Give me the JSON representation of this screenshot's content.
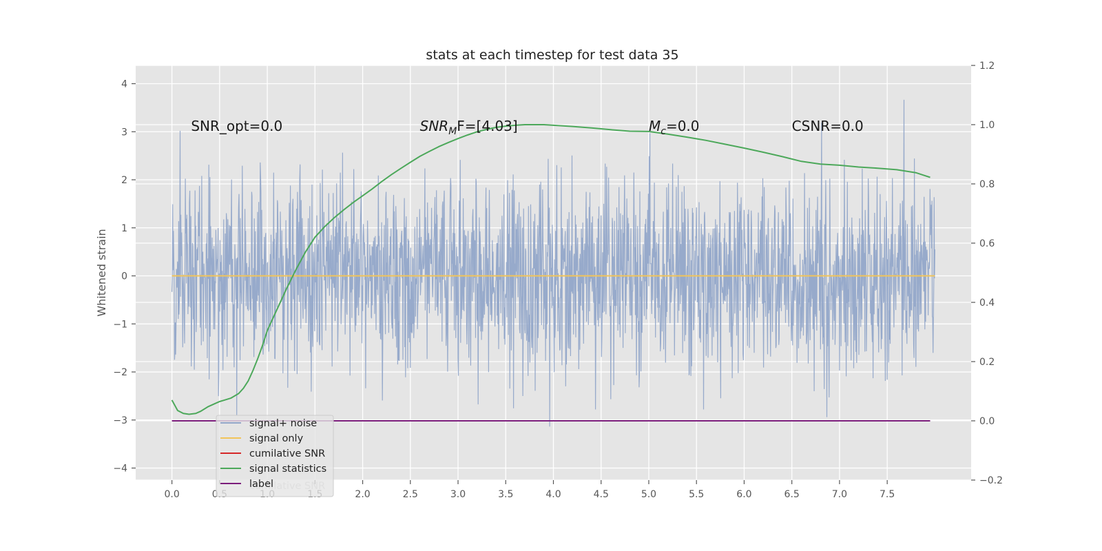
{
  "chart_data": {
    "type": "line",
    "title": "stats at each timestep for test data 35",
    "ylabel": "Whitened strain",
    "xlabel": "",
    "xlim": [
      -0.38,
      8.38
    ],
    "ylim": [
      -4.25,
      4.38
    ],
    "ylim_right": [
      -0.2,
      1.2
    ],
    "x_ticks": [
      0.0,
      0.5,
      1.0,
      1.5,
      2.0,
      2.5,
      3.0,
      3.5,
      4.0,
      4.5,
      5.0,
      5.5,
      6.0,
      6.5,
      7.0,
      7.5
    ],
    "x_tick_labels": [
      "0.0",
      "0.5",
      "1.0",
      "1.5",
      "2.0",
      "2.5",
      "3.0",
      "3.5",
      "4.0",
      "4.5",
      "5.0",
      "5.5",
      "6.0",
      "6.5",
      "7.0",
      "7.5"
    ],
    "y_ticks": [
      -4,
      -3,
      -2,
      -1,
      0,
      1,
      2,
      3,
      4
    ],
    "y_tick_labels": [
      "−4",
      "−3",
      "−2",
      "−1",
      "0",
      "1",
      "2",
      "3",
      "4"
    ],
    "y_ticks_right": [
      -0.2,
      0.0,
      0.2,
      0.4,
      0.6,
      0.8,
      1.0,
      1.2
    ],
    "y_tick_labels_right": [
      "−0.2",
      "0.0",
      "0.2",
      "0.4",
      "0.6",
      "0.8",
      "1.0",
      "1.2"
    ],
    "grid": true,
    "legend_position": "lower-left",
    "annotations": [
      {
        "x": 0.2,
        "y": 3.12,
        "text": "SNR_opt=0.0",
        "math": false
      },
      {
        "x": 2.6,
        "y": 3.12,
        "main": "SNR",
        "sub": "M",
        "rest": "F=[4.03]",
        "math": true
      },
      {
        "x": 5.0,
        "y": 3.12,
        "main": "M",
        "sub": "c",
        "rest": "=0.0",
        "math": true
      },
      {
        "x": 6.5,
        "y": 3.12,
        "text": "CSNR=0.0",
        "math": false
      }
    ],
    "series": [
      {
        "name": "signal+ noise",
        "color": "#92a6c9",
        "axis": "left",
        "kind": "noise",
        "x_range": [
          0.0,
          8.0
        ],
        "sample_rate": 256,
        "std": 1.0,
        "seed": 35
      },
      {
        "name": "signal only",
        "color": "#f1c459",
        "axis": "left",
        "x": [
          0.0,
          8.0
        ],
        "y": [
          0.0,
          0.0
        ]
      },
      {
        "name": "cumilative SNR",
        "color": "#d62728",
        "axis": "right",
        "x": [],
        "y": []
      },
      {
        "name": "signal statistics",
        "color": "#4ca85a",
        "axis": "right",
        "x": [
          0.0,
          0.06,
          0.12,
          0.18,
          0.25,
          0.3,
          0.38,
          0.45,
          0.5,
          0.55,
          0.62,
          0.7,
          0.75,
          0.8,
          0.85,
          0.9,
          0.95,
          1.0,
          1.05,
          1.1,
          1.15,
          1.2,
          1.3,
          1.4,
          1.5,
          1.6,
          1.7,
          1.8,
          1.9,
          2.0,
          2.1,
          2.2,
          2.3,
          2.4,
          2.5,
          2.6,
          2.7,
          2.8,
          2.9,
          3.0,
          3.1,
          3.2,
          3.3,
          3.4,
          3.5,
          3.6,
          3.7,
          3.8,
          3.9,
          4.0,
          4.2,
          4.4,
          4.6,
          4.8,
          5.0,
          5.2,
          5.4,
          5.6,
          5.8,
          6.0,
          6.2,
          6.4,
          6.6,
          6.8,
          7.0,
          7.2,
          7.4,
          7.6,
          7.8,
          7.95
        ],
        "y": [
          0.07,
          0.035,
          0.025,
          0.022,
          0.025,
          0.032,
          0.048,
          0.058,
          0.065,
          0.07,
          0.077,
          0.092,
          0.11,
          0.135,
          0.17,
          0.21,
          0.255,
          0.305,
          0.34,
          0.375,
          0.41,
          0.445,
          0.51,
          0.57,
          0.62,
          0.655,
          0.685,
          0.712,
          0.737,
          0.76,
          0.783,
          0.808,
          0.831,
          0.852,
          0.873,
          0.893,
          0.91,
          0.926,
          0.94,
          0.953,
          0.965,
          0.976,
          0.984,
          0.991,
          0.995,
          0.998,
          1.0,
          1.0,
          1.0,
          0.998,
          0.994,
          0.989,
          0.983,
          0.978,
          0.977,
          0.968,
          0.958,
          0.947,
          0.934,
          0.921,
          0.907,
          0.892,
          0.876,
          0.867,
          0.863,
          0.857,
          0.853,
          0.848,
          0.838,
          0.822
        ]
      },
      {
        "name": "label",
        "color": "#7b1d7b",
        "axis": "right",
        "x": [
          0.0,
          7.95
        ],
        "y": [
          0.0,
          0.0
        ]
      }
    ],
    "legend_ghost_text": "cumilative SNR"
  }
}
